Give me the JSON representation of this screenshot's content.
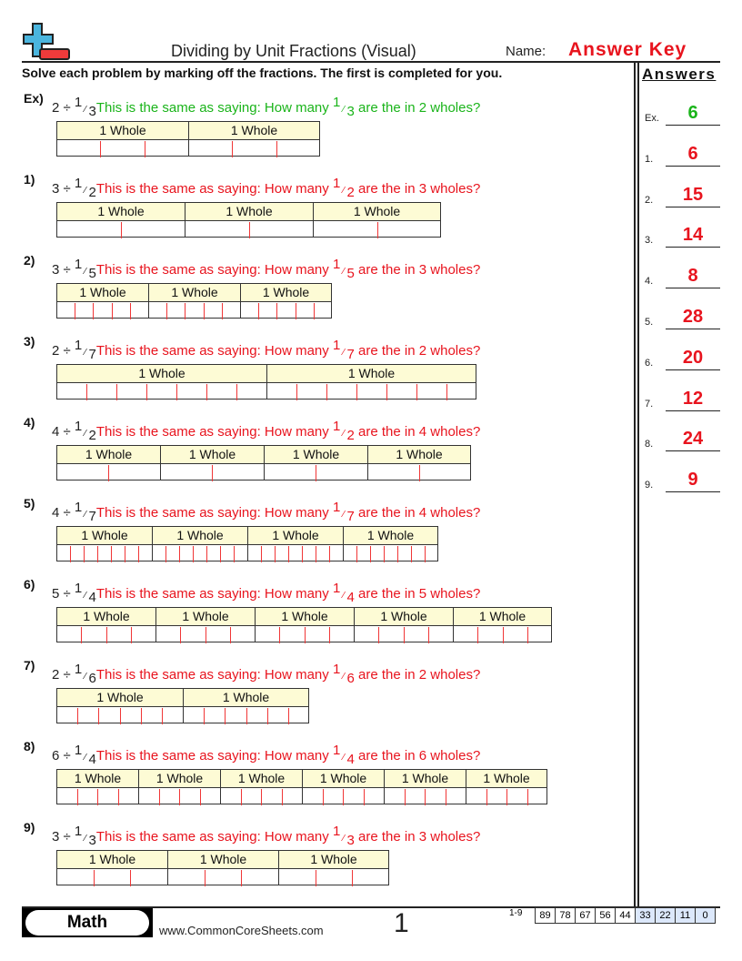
{
  "header": {
    "title": "Dividing by Unit Fractions (Visual)",
    "name_label": "Name:",
    "name_value": "Answer Key"
  },
  "instructions": "Solve each problem by marking off the fractions. The first is completed for you.",
  "answers": {
    "heading": "Answers",
    "items": [
      {
        "label": "Ex.",
        "value": "6"
      },
      {
        "label": "1.",
        "value": "6"
      },
      {
        "label": "2.",
        "value": "15"
      },
      {
        "label": "3.",
        "value": "14"
      },
      {
        "label": "4.",
        "value": "8"
      },
      {
        "label": "5.",
        "value": "28"
      },
      {
        "label": "6.",
        "value": "20"
      },
      {
        "label": "7.",
        "value": "12"
      },
      {
        "label": "8.",
        "value": "24"
      },
      {
        "label": "9.",
        "value": "9"
      }
    ]
  },
  "colors": {
    "example": "#1ab41a",
    "problem": "#e8141e",
    "answer_red": "#e8141e",
    "answer_green": "#1ab41a",
    "whole_fill": "#fdfbd5",
    "tick": "#f03636"
  },
  "whole_label": "1 Whole",
  "problems": [
    {
      "label": "Ex)",
      "wholes": 2,
      "denominator": 3,
      "text_a": "This is the same as saying: How many",
      "text_b": "are the in 2 wholes?"
    },
    {
      "label": "1)",
      "wholes": 3,
      "denominator": 2,
      "text_a": "This is the same as saying: How many",
      "text_b": "are the in 3 wholes?"
    },
    {
      "label": "2)",
      "wholes": 3,
      "denominator": 5,
      "text_a": "This is the same as saying: How many",
      "text_b": "are the in 3 wholes?"
    },
    {
      "label": "3)",
      "wholes": 2,
      "denominator": 7,
      "text_a": "This is the same as saying: How many",
      "text_b": "are the in 2 wholes?"
    },
    {
      "label": "4)",
      "wholes": 4,
      "denominator": 2,
      "text_a": "This is the same as saying: How many",
      "text_b": "are the in 4 wholes?"
    },
    {
      "label": "5)",
      "wholes": 4,
      "denominator": 7,
      "text_a": "This is the same as saying: How many",
      "text_b": "are the in 4 wholes?"
    },
    {
      "label": "6)",
      "wholes": 5,
      "denominator": 4,
      "text_a": "This is the same as saying: How many",
      "text_b": "are the in 5 wholes?"
    },
    {
      "label": "7)",
      "wholes": 2,
      "denominator": 6,
      "text_a": "This is the same as saying: How many",
      "text_b": "are the in 2 wholes?"
    },
    {
      "label": "8)",
      "wholes": 6,
      "denominator": 4,
      "text_a": "This is the same as saying: How many",
      "text_b": "are the in 6 wholes?"
    },
    {
      "label": "9)",
      "wholes": 3,
      "denominator": 3,
      "text_a": "This is the same as saying: How many",
      "text_b": "are the in 3 wholes?"
    }
  ],
  "footer": {
    "subject": "Math",
    "site": "www.CommonCoreSheets.com",
    "page": "1",
    "score_range": "1-9",
    "scores": [
      "89",
      "78",
      "67",
      "56",
      "44",
      "33",
      "22",
      "11",
      "0"
    ]
  }
}
